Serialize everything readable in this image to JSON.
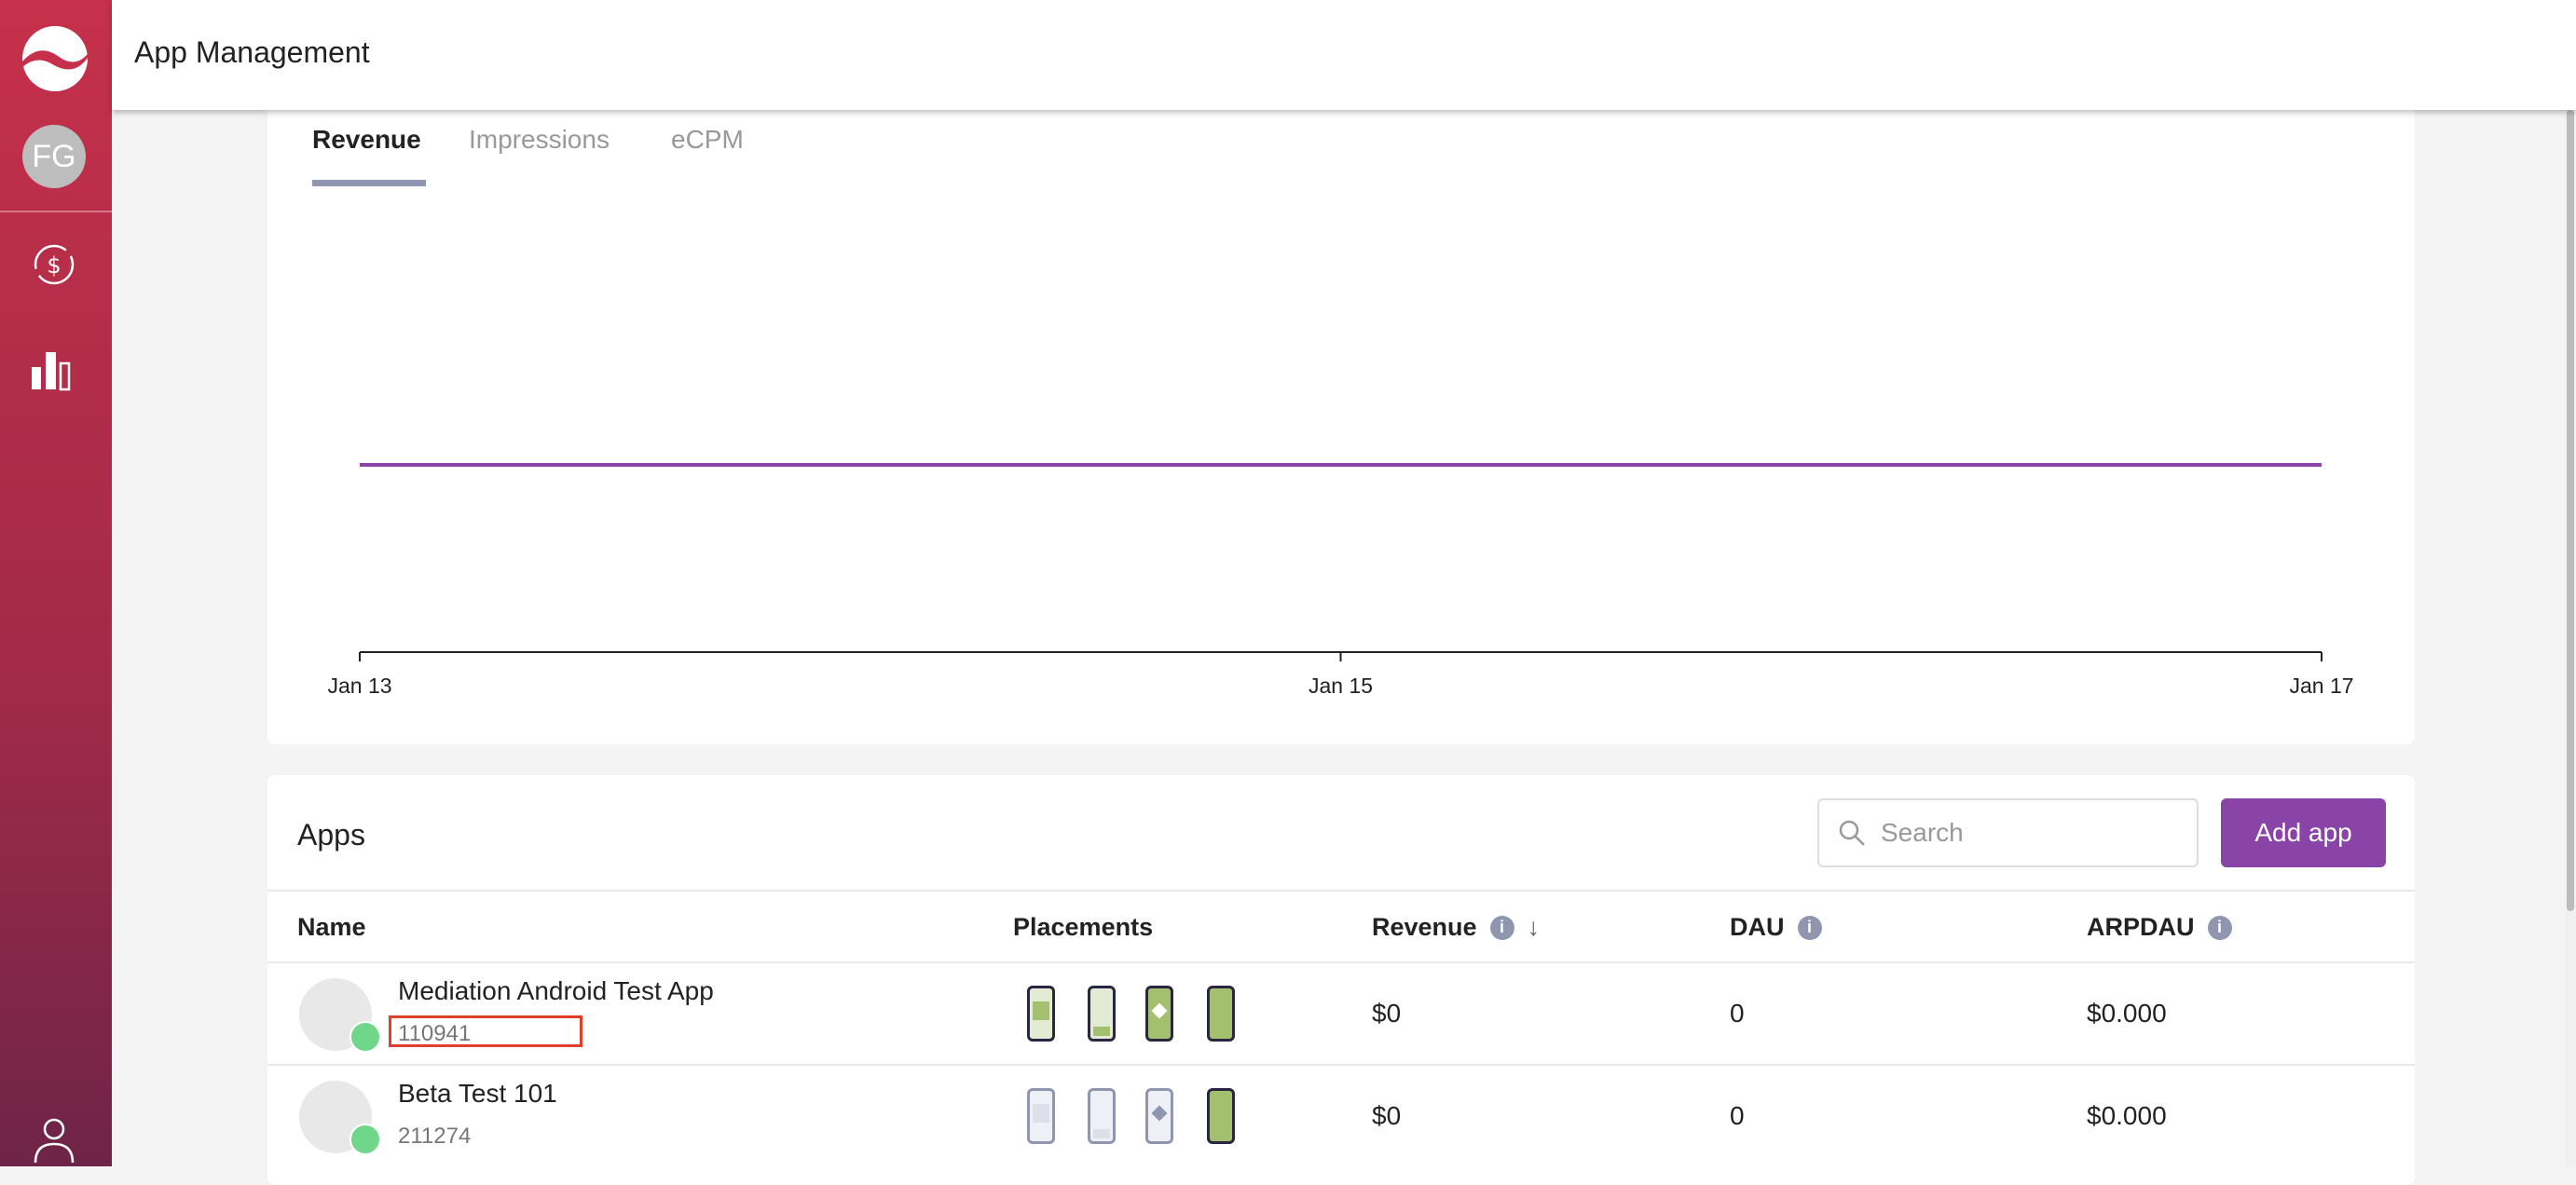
{
  "header": {
    "title": "App Management"
  },
  "user": {
    "initials": "FG"
  },
  "chart": {
    "tabs": [
      "Revenue",
      "Impressions",
      "eCPM"
    ],
    "active_tab": "Revenue"
  },
  "chart_data": {
    "type": "line",
    "x": [
      "Jan 13",
      "Jan 15",
      "Jan 17"
    ],
    "series": [
      {
        "values": [
          0,
          0,
          0
        ],
        "color": "#8a44a8"
      }
    ],
    "xticks": [
      "Jan 13",
      "Jan 15",
      "Jan 17"
    ]
  },
  "apps": {
    "title": "Apps",
    "search_placeholder": "Search",
    "add_label": "Add app",
    "columns": [
      "Name",
      "Placements",
      "Revenue",
      "DAU",
      "ARPDAU"
    ],
    "rows": [
      {
        "name": "Mediation Android Test App",
        "id": "110941",
        "revenue": "$0",
        "dau": "0",
        "arpdau": "$0.000",
        "placements_active": [
          true,
          true,
          true,
          true
        ]
      },
      {
        "name": "Beta Test 101",
        "id": "211274",
        "revenue": "$0",
        "dau": "0",
        "arpdau": "$0.000",
        "placements_active": [
          false,
          false,
          false,
          true
        ]
      }
    ]
  },
  "colors": {
    "accent": "#8a44a8",
    "sidebar": "#c6304a",
    "active_placement": "#a3c06e"
  }
}
